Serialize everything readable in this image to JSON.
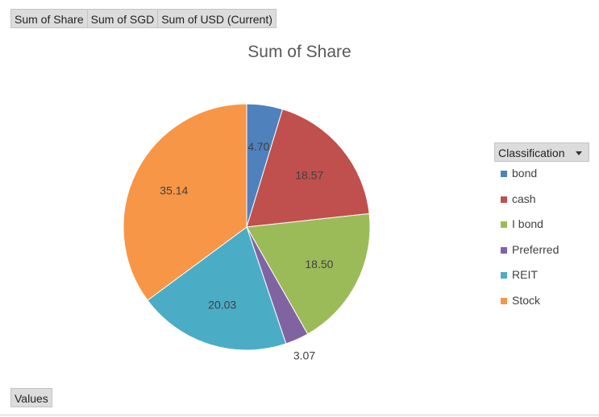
{
  "field_buttons": {
    "share_label": "Sum of Share",
    "sgd_label": "Sum of SGD",
    "usd_label": "Sum of USD (Current)"
  },
  "values_button": {
    "label": "Values"
  },
  "legend": {
    "header_label": "Classification",
    "dropdown_icon": "chevron-down-icon"
  },
  "chart_data": {
    "type": "pie",
    "title": "Sum of Share",
    "categories": [
      "bond",
      "cash",
      "I bond",
      "Preferred",
      "REIT",
      "Stock"
    ],
    "values": [
      4.7,
      18.57,
      18.5,
      3.07,
      20.03,
      35.14
    ],
    "data_labels": [
      "4.70",
      "18.57",
      "18.50",
      "3.07",
      "20.03",
      "35.14"
    ],
    "colors": [
      "#4f81bd",
      "#c0504d",
      "#9bbb59",
      "#8064a2",
      "#4bacc6",
      "#f79646"
    ],
    "start": "12 o'clock",
    "direction": "clockwise",
    "legend_position": "right"
  }
}
